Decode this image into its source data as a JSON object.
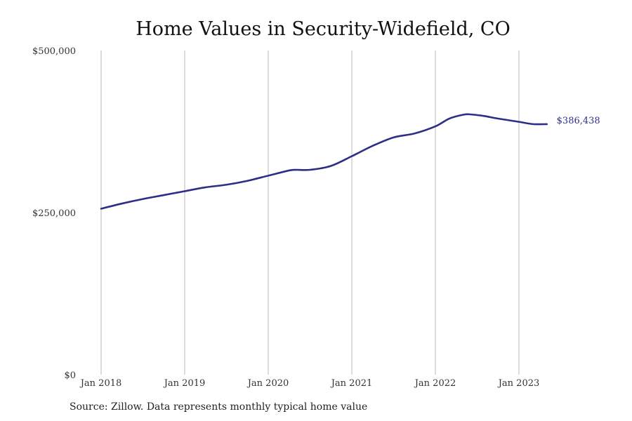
{
  "chart_data": {
    "type": "line",
    "title": "Home Values in Security-Widefield, CO",
    "source": "Source: Zillow. Data represents monthly typical home value",
    "xlabel": "",
    "ylabel": "",
    "ylim": [
      0,
      500000
    ],
    "y_ticks": [
      {
        "value": 0,
        "label": "$0"
      },
      {
        "value": 250000,
        "label": "$250,000"
      },
      {
        "value": 500000,
        "label": "$500,000"
      }
    ],
    "x_ticks": [
      {
        "value": "2018-01",
        "label": "Jan 2018"
      },
      {
        "value": "2019-01",
        "label": "Jan 2019"
      },
      {
        "value": "2020-01",
        "label": "Jan 2020"
      },
      {
        "value": "2021-01",
        "label": "Jan 2021"
      },
      {
        "value": "2022-01",
        "label": "Jan 2022"
      },
      {
        "value": "2023-01",
        "label": "Jan 2023"
      }
    ],
    "grid": "vertical",
    "line_color": "#2e2d88",
    "end_label": "$386,438",
    "series": [
      {
        "x": [
          "2018-01",
          "2018-04",
          "2018-07",
          "2018-10",
          "2019-01",
          "2019-04",
          "2019-07",
          "2019-10",
          "2020-01",
          "2020-04",
          "2020-05",
          "2020-07",
          "2020-10",
          "2021-01",
          "2021-04",
          "2021-07",
          "2021-10",
          "2022-01",
          "2022-03",
          "2022-05",
          "2022-06",
          "2022-08",
          "2022-10",
          "2023-01",
          "2023-03",
          "2023-05"
        ],
        "values": [
          256000,
          264000,
          271000,
          277000,
          283000,
          289000,
          293000,
          299000,
          307000,
          315000,
          316000,
          316000,
          322000,
          337000,
          353000,
          366000,
          372000,
          383000,
          395000,
          401000,
          401500,
          399000,
          395000,
          390000,
          386500,
          386438
        ]
      }
    ]
  }
}
